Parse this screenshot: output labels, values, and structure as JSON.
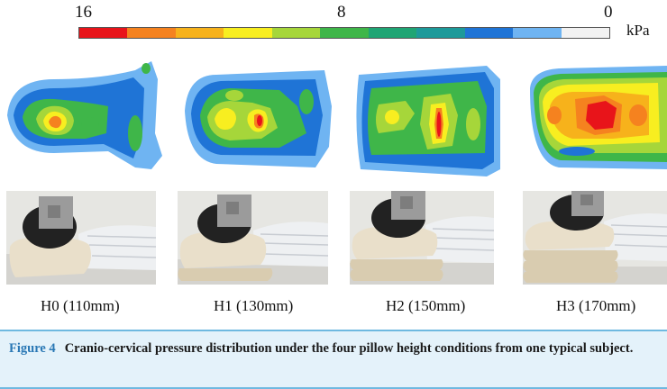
{
  "colorbar": {
    "tick_max": "16",
    "tick_mid": "8",
    "tick_min": "0",
    "unit": "kPa",
    "colors": [
      "#e8141a",
      "#f5821f",
      "#f7b21b",
      "#f8ee20",
      "#a6d63a",
      "#3fb649",
      "#1fa574",
      "#1d9a9a",
      "#1f74d6",
      "#6fb4f2",
      "#f2f2f2"
    ]
  },
  "panels": [
    {
      "id": "h0",
      "label": "H0 (110mm)"
    },
    {
      "id": "h1",
      "label": "H1 (130mm)"
    },
    {
      "id": "h2",
      "label": "H2 (150mm)"
    },
    {
      "id": "h3",
      "label": "H3 (170mm)"
    }
  ],
  "caption": {
    "figure_number": "Figure 4",
    "text": "Cranio-cervical pressure distribution under the four pillow height conditions from one typical subject."
  }
}
